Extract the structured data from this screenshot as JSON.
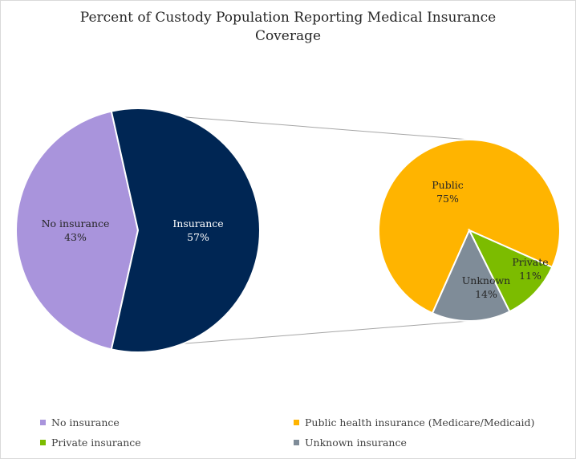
{
  "chart_data": {
    "type": "pie",
    "title_lines": [
      "Percent of Custody Population Reporting Medical Insurance",
      "Coverage"
    ],
    "primary": {
      "slices": [
        {
          "label": "No insurance",
          "value": 43,
          "display": "43%",
          "color": "#a994dc"
        },
        {
          "label": "Insurance",
          "value": 57,
          "display": "57%",
          "color": "#002654"
        }
      ]
    },
    "secondary": {
      "slices": [
        {
          "label": "Public",
          "value": 75,
          "display": "75%",
          "color": "#ffb400"
        },
        {
          "label": "Private",
          "value": 11,
          "display": "11%",
          "color": "#7cbc00"
        },
        {
          "label": "Unknown",
          "value": 14,
          "display": "14%",
          "color": "#7f8c98"
        }
      ]
    },
    "legend": [
      {
        "label": "No insurance",
        "color": "#a994dc"
      },
      {
        "label": "Public health insurance (Medicare/Medicaid)",
        "color": "#ffb400"
      },
      {
        "label": "Private insurance",
        "color": "#7cbc00"
      },
      {
        "label": "Unknown insurance",
        "color": "#7f8c98"
      }
    ],
    "legend_position": "bottom"
  }
}
